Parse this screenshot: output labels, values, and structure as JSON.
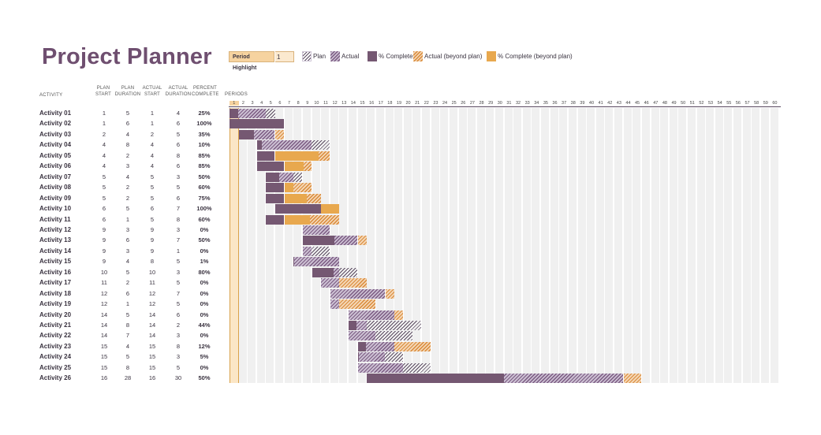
{
  "title": "Project Planner",
  "period_highlight": {
    "label": "Period Highlight",
    "value": "1"
  },
  "legend": [
    {
      "key": "plan",
      "label": "Plan"
    },
    {
      "key": "actual",
      "label": "Actual"
    },
    {
      "key": "complete",
      "label": "% Complete"
    },
    {
      "key": "beyond",
      "label": "Actual (beyond plan)"
    },
    {
      "key": "complete_beyond",
      "label": "% Complete (beyond plan)"
    }
  ],
  "headers": {
    "activity": "ACTIVITY",
    "plan_start": [
      "PLAN",
      "START"
    ],
    "plan_duration": [
      "PLAN",
      "DURATION"
    ],
    "actual_start": [
      "ACTUAL",
      "START"
    ],
    "actual_duration": [
      "ACTUAL",
      "DURATION"
    ],
    "percent_complete": [
      "PERCENT",
      "COMPLETE"
    ],
    "periods": "PERIODS"
  },
  "period_count": 60,
  "colors": {
    "title": "#6f4f70",
    "complete": "#755872",
    "complete_beyond": "#e8a84e",
    "highlight": "#f6d3a0",
    "stripe": "#f0f0f0"
  },
  "activities": [
    {
      "name": "Activity 01",
      "plan_start": 1,
      "plan_duration": 5,
      "actual_start": 1,
      "actual_duration": 4,
      "percent": "25%"
    },
    {
      "name": "Activity 02",
      "plan_start": 1,
      "plan_duration": 6,
      "actual_start": 1,
      "actual_duration": 6,
      "percent": "100%"
    },
    {
      "name": "Activity 03",
      "plan_start": 2,
      "plan_duration": 4,
      "actual_start": 2,
      "actual_duration": 5,
      "percent": "35%"
    },
    {
      "name": "Activity 04",
      "plan_start": 4,
      "plan_duration": 8,
      "actual_start": 4,
      "actual_duration": 6,
      "percent": "10%"
    },
    {
      "name": "Activity 05",
      "plan_start": 4,
      "plan_duration": 2,
      "actual_start": 4,
      "actual_duration": 8,
      "percent": "85%"
    },
    {
      "name": "Activity 06",
      "plan_start": 4,
      "plan_duration": 3,
      "actual_start": 4,
      "actual_duration": 6,
      "percent": "85%"
    },
    {
      "name": "Activity 07",
      "plan_start": 5,
      "plan_duration": 4,
      "actual_start": 5,
      "actual_duration": 3,
      "percent": "50%"
    },
    {
      "name": "Activity 08",
      "plan_start": 5,
      "plan_duration": 2,
      "actual_start": 5,
      "actual_duration": 5,
      "percent": "60%"
    },
    {
      "name": "Activity 09",
      "plan_start": 5,
      "plan_duration": 2,
      "actual_start": 5,
      "actual_duration": 6,
      "percent": "75%"
    },
    {
      "name": "Activity 10",
      "plan_start": 6,
      "plan_duration": 5,
      "actual_start": 6,
      "actual_duration": 7,
      "percent": "100%"
    },
    {
      "name": "Activity 11",
      "plan_start": 6,
      "plan_duration": 1,
      "actual_start": 5,
      "actual_duration": 8,
      "percent": "60%"
    },
    {
      "name": "Activity 12",
      "plan_start": 9,
      "plan_duration": 3,
      "actual_start": 9,
      "actual_duration": 3,
      "percent": "0%"
    },
    {
      "name": "Activity 13",
      "plan_start": 9,
      "plan_duration": 6,
      "actual_start": 9,
      "actual_duration": 7,
      "percent": "50%"
    },
    {
      "name": "Activity 14",
      "plan_start": 9,
      "plan_duration": 3,
      "actual_start": 9,
      "actual_duration": 1,
      "percent": "0%"
    },
    {
      "name": "Activity 15",
      "plan_start": 9,
      "plan_duration": 4,
      "actual_start": 8,
      "actual_duration": 5,
      "percent": "1%"
    },
    {
      "name": "Activity 16",
      "plan_start": 10,
      "plan_duration": 5,
      "actual_start": 10,
      "actual_duration": 3,
      "percent": "80%"
    },
    {
      "name": "Activity 17",
      "plan_start": 11,
      "plan_duration": 2,
      "actual_start": 11,
      "actual_duration": 5,
      "percent": "0%"
    },
    {
      "name": "Activity 18",
      "plan_start": 12,
      "plan_duration": 6,
      "actual_start": 12,
      "actual_duration": 7,
      "percent": "0%"
    },
    {
      "name": "Activity 19",
      "plan_start": 12,
      "plan_duration": 1,
      "actual_start": 12,
      "actual_duration": 5,
      "percent": "0%"
    },
    {
      "name": "Activity 20",
      "plan_start": 14,
      "plan_duration": 5,
      "actual_start": 14,
      "actual_duration": 6,
      "percent": "0%"
    },
    {
      "name": "Activity 21",
      "plan_start": 14,
      "plan_duration": 8,
      "actual_start": 14,
      "actual_duration": 2,
      "percent": "44%"
    },
    {
      "name": "Activity 22",
      "plan_start": 14,
      "plan_duration": 7,
      "actual_start": 14,
      "actual_duration": 3,
      "percent": "0%"
    },
    {
      "name": "Activity 23",
      "plan_start": 15,
      "plan_duration": 4,
      "actual_start": 15,
      "actual_duration": 8,
      "percent": "12%"
    },
    {
      "name": "Activity 24",
      "plan_start": 15,
      "plan_duration": 5,
      "actual_start": 15,
      "actual_duration": 3,
      "percent": "5%"
    },
    {
      "name": "Activity 25",
      "plan_start": 15,
      "plan_duration": 8,
      "actual_start": 15,
      "actual_duration": 5,
      "percent": "0%"
    },
    {
      "name": "Activity 26",
      "plan_start": 16,
      "plan_duration": 28,
      "actual_start": 16,
      "actual_duration": 30,
      "percent": "50%"
    }
  ]
}
